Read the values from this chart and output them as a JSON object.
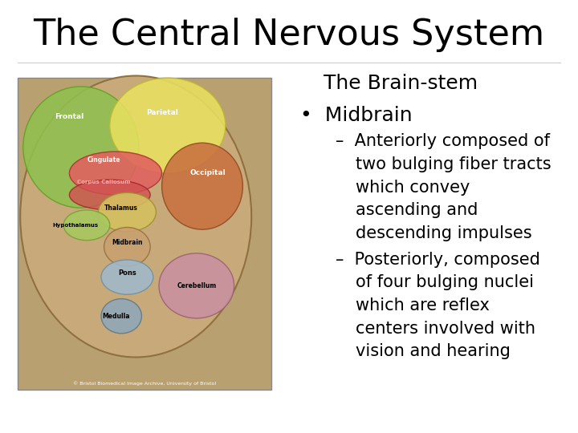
{
  "title": "The Central Nervous System",
  "subtitle": "The Brain-stem",
  "bullet1": "Midbrain",
  "dash1_lines": [
    "Anteriorly composed of",
    "two bulging fiber tracts",
    "which convey",
    "ascending and",
    "descending impulses"
  ],
  "dash2_lines": [
    "Posteriorly, composed",
    "of four bulging nuclei",
    "which are reflex",
    "centers involved with",
    "vision and hearing"
  ],
  "bg_color": "#ffffff",
  "title_color": "#000000",
  "text_color": "#000000",
  "title_fontsize": 32,
  "subtitle_fontsize": 18,
  "bullet_fontsize": 18,
  "dash_fontsize": 15
}
